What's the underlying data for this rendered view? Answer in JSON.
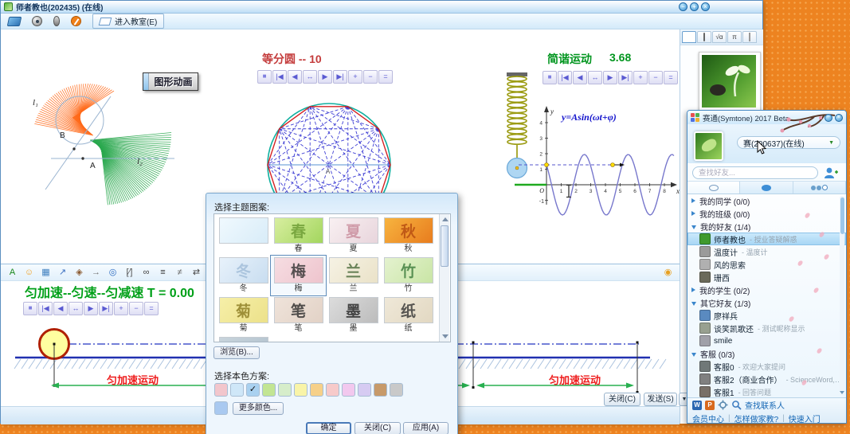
{
  "wb": {
    "title": "师者教也(202435) (在线)",
    "win_min": "−",
    "win_max": "+",
    "win_close": "×",
    "enter": "进入教室(E)",
    "anim": "图形动画",
    "circle_title": "等分圆 -- 10",
    "harm_title": "简谐运动",
    "harm_value": "3.68",
    "formula": "y=Asin(ωt+φ)",
    "motion_title": "匀加速--匀速--匀减速 T = 0.00",
    "accel_left": "匀加速运动",
    "accel_right": "匀加速运动",
    "close_btn": "关闭(C)",
    "send_btn": "发送(S)",
    "send_arrow": "▼",
    "tab_sqrt": "√α",
    "tab_pi": "π",
    "player_buttons": [
      "■",
      "|◀",
      "◀",
      "↔",
      "▶",
      "▶|",
      "+",
      "−",
      "="
    ],
    "geo": {
      "l1": "l₁",
      "l2": "l₂",
      "a": "A",
      "b": "B",
      "center": "A"
    },
    "axes": {
      "x": "x",
      "y": "y",
      "o": "O",
      "neg": "-1",
      "xt": [
        1,
        2,
        3,
        4,
        5,
        6,
        7,
        8
      ],
      "yt": [
        1,
        2,
        3,
        4
      ]
    },
    "panel_icons": [
      {
        "n": "font-color-icon",
        "g": "A",
        "c": "#18871b"
      },
      {
        "n": "emoticon-icon",
        "g": "☺",
        "c": "#f0a020"
      },
      {
        "n": "image-icon",
        "g": "▦",
        "c": "#3f7fbf"
      },
      {
        "n": "share-icon",
        "g": "↗",
        "c": "#3a6fc0"
      },
      {
        "n": "object-icon",
        "g": "◈",
        "c": "#8a5a30"
      },
      {
        "n": "pin-icon",
        "g": "→",
        "c": "#707070"
      },
      {
        "n": "history-icon",
        "g": "◎",
        "c": "#2a6ac0"
      },
      {
        "n": "fraction-icon",
        "g": "[∕]",
        "c": "#505050"
      },
      {
        "n": "glasses-icon",
        "g": "∞",
        "c": "#404040"
      },
      {
        "n": "thick-lines-icon",
        "g": "≡",
        "c": "#303030"
      },
      {
        "n": "ruled-lines-icon",
        "g": "≠",
        "c": "#606060"
      },
      {
        "n": "resize-icon",
        "g": "⇄",
        "c": "#404040"
      },
      {
        "n": "pen-icon",
        "g": "✎",
        "c": "#2050a0"
      },
      {
        "n": "fill-icon",
        "g": "◧",
        "c": "#b03030"
      },
      {
        "n": "chat-card-icon",
        "g": "▤",
        "c": "#3a8a3a"
      },
      {
        "n": "capture-icon",
        "g": "▣",
        "c": "#4a6a9a"
      },
      {
        "n": "panel-lock-icon",
        "g": "◉",
        "c": "#e8a020",
        "right": true
      }
    ]
  },
  "dialog": {
    "title": "选择主题图案:",
    "browse": "浏览(B)...",
    "scheme_label": "选择本色方案:",
    "more_colors": "更多颜色...",
    "ok": "确定",
    "close": "关闭(C)",
    "apply": "应用(A)",
    "check": "✓",
    "extra_swatch": "#a9c9f0",
    "themes": [
      {
        "label": "",
        "c1": "#f0f9fe",
        "c2": "#d8ecf8",
        "ink": ""
      },
      {
        "label": "春",
        "c1": "#d8eea0",
        "c2": "#a3d65e",
        "ink": "#6a9a32"
      },
      {
        "label": "夏",
        "c1": "#f9f0f2",
        "c2": "#e8d5dc",
        "ink": "#c88a9a"
      },
      {
        "label": "秋",
        "c1": "#f7b43f",
        "c2": "#e87c1e",
        "ink": "#b54a10"
      },
      {
        "label": "冬",
        "c1": "#e8f2fb",
        "c2": "#c8ddf0",
        "ink": "#a0bcd8"
      },
      {
        "label": "梅",
        "c1": "#f6dde2",
        "c2": "#eec4cd",
        "ink": "#303030",
        "selected": true
      },
      {
        "label": "兰",
        "c1": "#f6f2e4",
        "c2": "#eae2c8",
        "ink": "#4a6a3a"
      },
      {
        "label": "竹",
        "c1": "#e4f2cf",
        "c2": "#c9e5a5",
        "ink": "#3a7a3a"
      },
      {
        "label": "菊",
        "c1": "#f6efa8",
        "c2": "#ece18a",
        "ink": "#8a7a20"
      },
      {
        "label": "笔",
        "c1": "#efe3da",
        "c2": "#e2d2c6",
        "ink": "#2a2a2a"
      },
      {
        "label": "墨",
        "c1": "#dcdcdc",
        "c2": "#bcbcbc",
        "ink": "#222222"
      },
      {
        "label": "纸",
        "c1": "#efe8d8",
        "c2": "#e2d8c2",
        "ink": "#333333"
      },
      {
        "label": "",
        "c1": "#c8d4dc",
        "c2": "#b0c0cc",
        "ink": "#444444"
      }
    ],
    "swatches": [
      {
        "color": "#f2c6cc"
      },
      {
        "color": "#cfe7f8"
      },
      {
        "color": "#a9d1f0",
        "checked": true
      },
      {
        "color": "#c2e593"
      },
      {
        "color": "#d6edca"
      },
      {
        "color": "#f9f4a8"
      },
      {
        "color": "#f6d089"
      },
      {
        "color": "#f7caca"
      },
      {
        "color": "#f2c8ee"
      },
      {
        "color": "#d6cbf2"
      },
      {
        "color": "#c79a6a"
      },
      {
        "color": "#c9c9c9"
      }
    ]
  },
  "chat": {
    "title": "赛通(Symtone) 2017 Beta",
    "win_min": "−",
    "win_close": "×",
    "self": "赛(200637)(在线)",
    "caret": "▼",
    "search_placeholder": "查找好友...",
    "icon_w": "W",
    "icon_p": "P",
    "find_contacts": "查找联系人",
    "sep": "|",
    "links": [
      "会员中心",
      "怎样做家教?",
      "快速入门"
    ],
    "rows": [
      {
        "t": "g",
        "exp": false,
        "label": "我的同学 (0/0)"
      },
      {
        "t": "g",
        "exp": false,
        "label": "我的班级 (0/0)"
      },
      {
        "t": "g",
        "exp": true,
        "label": "我的好友 (1/4)"
      },
      {
        "t": "c",
        "name": "师者教也",
        "status": "- 授业答疑解惑",
        "av": "#3f9a2f",
        "sel": true
      },
      {
        "t": "c",
        "name": "温度计",
        "status": "- 温度计",
        "av": "#9a9a9a"
      },
      {
        "t": "c",
        "name": "风的思索",
        "status": "",
        "av": "#b0b0b0"
      },
      {
        "t": "c",
        "name": "珊西",
        "status": "",
        "av": "#6a6a5a"
      },
      {
        "t": "g",
        "exp": false,
        "label": "我的学生 (0/2)"
      },
      {
        "t": "g",
        "exp": true,
        "label": "其它好友 (1/3)"
      },
      {
        "t": "c",
        "name": "廖祥兵",
        "status": "",
        "av": "#5a8ac0"
      },
      {
        "t": "c",
        "name": "谈笑凯歌还",
        "status": "- 测试昵称显示",
        "av": "#98a090"
      },
      {
        "t": "c",
        "name": "smile",
        "status": "",
        "av": "#a0a0a8"
      },
      {
        "t": "g",
        "exp": true,
        "label": "客服 (0/3)"
      },
      {
        "t": "c",
        "name": "客服0",
        "status": "- 欢迎大家提问",
        "av": "#707878"
      },
      {
        "t": "c",
        "name": "客服2（商业合作）",
        "status": "- ScienceWord, Class插…",
        "av": "#808080"
      },
      {
        "t": "c",
        "name": "客服1",
        "status": "- 回答问题",
        "av": "#787068"
      }
    ]
  }
}
